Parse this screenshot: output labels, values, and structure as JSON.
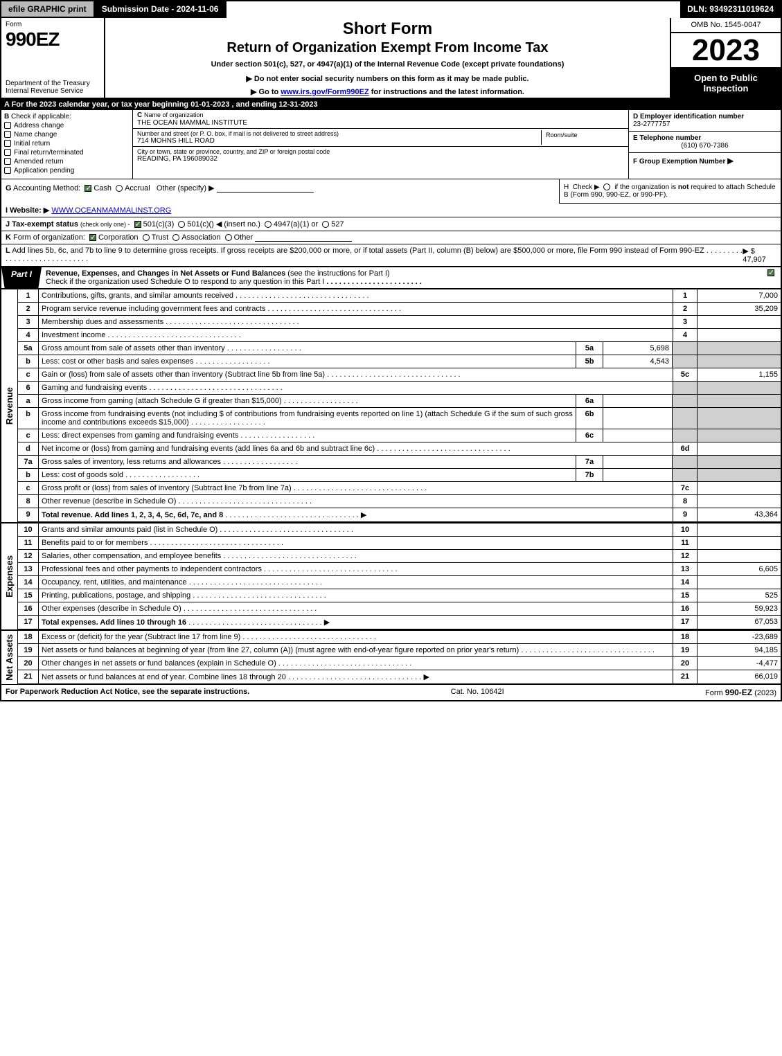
{
  "topbar": {
    "efile": "efile GRAPHIC print",
    "submission": "Submission Date - 2024-11-06",
    "dln": "DLN: 93492311019624"
  },
  "header": {
    "form_label": "Form",
    "form_name": "990EZ",
    "dept": "Department of the Treasury\nInternal Revenue Service",
    "short_form": "Short Form",
    "return_title": "Return of Organization Exempt From Income Tax",
    "under_section": "Under section 501(c), 527, or 4947(a)(1) of the Internal Revenue Code (except private foundations)",
    "do_not": "▶ Do not enter social security numbers on this form as it may be made public.",
    "goto_pre": "▶ Go to ",
    "goto_link": "www.irs.gov/Form990EZ",
    "goto_post": " for instructions and the latest information.",
    "omb": "OMB No. 1545-0047",
    "year": "2023",
    "open_to": "Open to Public Inspection"
  },
  "lineA": "A  For the 2023 calendar year, or tax year beginning 01-01-2023 , and ending 12-31-2023",
  "B": {
    "hdr": "B",
    "label": "Check if applicable:",
    "items": [
      "Address change",
      "Name change",
      "Initial return",
      "Final return/terminated",
      "Amended return",
      "Application pending"
    ]
  },
  "C": {
    "hdr": "C",
    "name_lbl": "Name of organization",
    "name_val": "THE OCEAN MAMMAL INSTITUTE",
    "addr_lbl": "Number and street (or P. O. box, if mail is not delivered to street address)",
    "addr_val": "714 MOHNS HILL ROAD",
    "room_lbl": "Room/suite",
    "city_lbl": "City or town, state or province, country, and ZIP or foreign postal code",
    "city_val": "READING, PA  196089032"
  },
  "D": {
    "hdr": "D Employer identification number",
    "val": "23-2777757"
  },
  "E": {
    "hdr": "E Telephone number",
    "val": "(610) 670-7386"
  },
  "F": {
    "hdr": "F Group Exemption Number",
    "arrow": "▶"
  },
  "G": {
    "hdr": "G",
    "label": "Accounting Method:",
    "cash": "Cash",
    "accrual": "Accrual",
    "other": "Other (specify) ▶"
  },
  "H": {
    "hdr": "H",
    "text1": "Check ▶",
    "text2": "if the organization is",
    "text3": "not",
    "text4": "required to attach Schedule B (Form 990, 990-EZ, or 990-PF)."
  },
  "I": {
    "hdr": "I Website: ▶",
    "val": "WWW.OCEANMAMMALINST.ORG"
  },
  "J": {
    "hdr": "J Tax-exempt status",
    "text": "(check only one) -",
    "opt1": "501(c)(3)",
    "opt2": "501(c)(",
    "ins": ") ◀ (insert no.)",
    "opt3": "4947(a)(1) or",
    "opt4": "527"
  },
  "K": {
    "hdr": "K",
    "label": "Form of organization:",
    "opts": [
      "Corporation",
      "Trust",
      "Association",
      "Other"
    ]
  },
  "L": {
    "hdr": "L",
    "text": "Add lines 5b, 6c, and 7b to line 9 to determine gross receipts. If gross receipts are $200,000 or more, or if total assets (Part II, column (B) below) are $500,000 or more, file Form 990 instead of Form 990-EZ",
    "arrow": "▶ $",
    "val": "47,907"
  },
  "part1": {
    "tab": "Part I",
    "title": "Revenue, Expenses, and Changes in Net Assets or Fund Balances",
    "sub": "(see the instructions for Part I)",
    "check_text": "Check if the organization used Schedule O to respond to any question in this Part I"
  },
  "revenue": {
    "label": "Revenue",
    "rows": [
      {
        "n": "1",
        "desc": "Contributions, gifts, grants, and similar amounts received",
        "res": "1",
        "val": "7,000"
      },
      {
        "n": "2",
        "desc": "Program service revenue including government fees and contracts",
        "res": "2",
        "val": "35,209"
      },
      {
        "n": "3",
        "desc": "Membership dues and assessments",
        "res": "3",
        "val": ""
      },
      {
        "n": "4",
        "desc": "Investment income",
        "res": "4",
        "val": ""
      },
      {
        "n": "5a",
        "desc": "Gross amount from sale of assets other than inventory",
        "sub": "5a",
        "subval": "5,698",
        "res": "",
        "val": "",
        "grey": true
      },
      {
        "n": "b",
        "desc": "Less: cost or other basis and sales expenses",
        "sub": "5b",
        "subval": "4,543",
        "res": "",
        "val": "",
        "grey": true
      },
      {
        "n": "c",
        "desc": "Gain or (loss) from sale of assets other than inventory (Subtract line 5b from line 5a)",
        "res": "5c",
        "val": "1,155"
      },
      {
        "n": "6",
        "desc": "Gaming and fundraising events",
        "res": "",
        "val": "",
        "grey": true,
        "nosub": true
      },
      {
        "n": "a",
        "desc": "Gross income from gaming (attach Schedule G if greater than $15,000)",
        "sub": "6a",
        "subval": "",
        "res": "",
        "val": "",
        "grey": true
      },
      {
        "n": "b",
        "desc": "Gross income from fundraising events (not including $                          of contributions from fundraising events reported on line 1) (attach Schedule G if the sum of such gross income and contributions exceeds $15,000)",
        "sub": "6b",
        "subval": "",
        "res": "",
        "val": "",
        "grey": true,
        "wrap": true
      },
      {
        "n": "c",
        "desc": "Less: direct expenses from gaming and fundraising events",
        "sub": "6c",
        "subval": "",
        "res": "",
        "val": "",
        "grey": true
      },
      {
        "n": "d",
        "desc": "Net income or (loss) from gaming and fundraising events (add lines 6a and 6b and subtract line 6c)",
        "res": "6d",
        "val": ""
      },
      {
        "n": "7a",
        "desc": "Gross sales of inventory, less returns and allowances",
        "sub": "7a",
        "subval": "",
        "res": "",
        "val": "",
        "grey": true
      },
      {
        "n": "b",
        "desc": "Less: cost of goods sold",
        "sub": "7b",
        "subval": "",
        "res": "",
        "val": "",
        "grey": true
      },
      {
        "n": "c",
        "desc": "Gross profit or (loss) from sales of inventory (Subtract line 7b from line 7a)",
        "res": "7c",
        "val": ""
      },
      {
        "n": "8",
        "desc": "Other revenue (describe in Schedule O)",
        "res": "8",
        "val": ""
      },
      {
        "n": "9",
        "desc": "Total revenue. Add lines 1, 2, 3, 4, 5c, 6d, 7c, and 8",
        "res": "9",
        "val": "43,364",
        "bold": true,
        "arrow": true
      }
    ]
  },
  "expenses": {
    "label": "Expenses",
    "rows": [
      {
        "n": "10",
        "desc": "Grants and similar amounts paid (list in Schedule O)",
        "res": "10",
        "val": ""
      },
      {
        "n": "11",
        "desc": "Benefits paid to or for members",
        "res": "11",
        "val": ""
      },
      {
        "n": "12",
        "desc": "Salaries, other compensation, and employee benefits",
        "res": "12",
        "val": ""
      },
      {
        "n": "13",
        "desc": "Professional fees and other payments to independent contractors",
        "res": "13",
        "val": "6,605"
      },
      {
        "n": "14",
        "desc": "Occupancy, rent, utilities, and maintenance",
        "res": "14",
        "val": ""
      },
      {
        "n": "15",
        "desc": "Printing, publications, postage, and shipping",
        "res": "15",
        "val": "525"
      },
      {
        "n": "16",
        "desc": "Other expenses (describe in Schedule O)",
        "res": "16",
        "val": "59,923"
      },
      {
        "n": "17",
        "desc": "Total expenses. Add lines 10 through 16",
        "res": "17",
        "val": "67,053",
        "bold": true,
        "arrow": true
      }
    ]
  },
  "netassets": {
    "label": "Net Assets",
    "rows": [
      {
        "n": "18",
        "desc": "Excess or (deficit) for the year (Subtract line 17 from line 9)",
        "res": "18",
        "val": "-23,689"
      },
      {
        "n": "19",
        "desc": "Net assets or fund balances at beginning of year (from line 27, column (A)) (must agree with end-of-year figure reported on prior year's return)",
        "res": "19",
        "val": "94,185",
        "wrap": true
      },
      {
        "n": "20",
        "desc": "Other changes in net assets or fund balances (explain in Schedule O)",
        "res": "20",
        "val": "-4,477"
      },
      {
        "n": "21",
        "desc": "Net assets or fund balances at end of year. Combine lines 18 through 20",
        "res": "21",
        "val": "66,019",
        "arrow": true
      }
    ]
  },
  "footer": {
    "left": "For Paperwork Reduction Act Notice, see the separate instructions.",
    "mid": "Cat. No. 10642I",
    "right_pre": "Form ",
    "right_form": "990-EZ",
    "right_post": " (2023)"
  },
  "colors": {
    "black": "#000000",
    "white": "#ffffff",
    "grey_btn": "#b9b9b9",
    "grey_cell": "#d0d0d0",
    "link": "#0000cc",
    "check_green": "#4a7a4a"
  }
}
